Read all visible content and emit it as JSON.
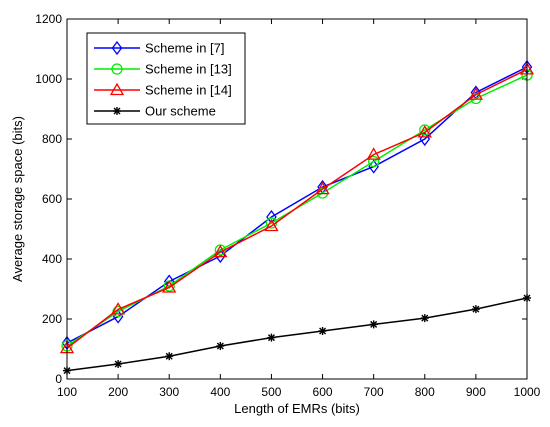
{
  "chart_data": {
    "type": "line",
    "xlabel": "Length of EMRs (bits)",
    "ylabel": "Average storage space (bits)",
    "xlim": [
      100,
      1000
    ],
    "ylim": [
      0,
      1200
    ],
    "xticks": [
      "100",
      "200",
      "300",
      "400",
      "500",
      "600",
      "700",
      "800",
      "900",
      "1000"
    ],
    "yticks": [
      "0",
      "200",
      "400",
      "600",
      "800",
      "1000",
      "1200"
    ],
    "grid": false,
    "legend_position": "top-left",
    "x": [
      100,
      200,
      300,
      400,
      500,
      600,
      700,
      800,
      900,
      1000
    ],
    "series": [
      {
        "name": "Scheme in [7]",
        "color": "#0000ff",
        "marker": "diamond",
        "values": [
          120,
          208,
          325,
          410,
          540,
          640,
          708,
          800,
          955,
          1040
        ]
      },
      {
        "name": "Scheme in [13]",
        "color": "#00ee00",
        "marker": "circle",
        "values": [
          110,
          225,
          310,
          430,
          520,
          620,
          725,
          830,
          935,
          1013
        ]
      },
      {
        "name": "Scheme in [14]",
        "color": "#ff0000",
        "marker": "triangle",
        "values": [
          103,
          232,
          305,
          423,
          510,
          633,
          748,
          822,
          948,
          1032
        ]
      },
      {
        "name": "Our scheme",
        "color": "#000000",
        "marker": "star",
        "values": [
          28,
          50,
          76,
          110,
          138,
          160,
          182,
          203,
          233,
          270
        ]
      }
    ]
  }
}
